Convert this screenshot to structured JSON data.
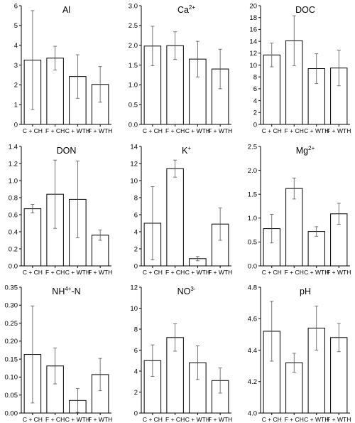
{
  "chart_data": [
    {
      "type": "bar",
      "title": "Al",
      "title_sup": "",
      "title_suffix": "",
      "categories": [
        "C + CH",
        "F + CH",
        "C + WTH",
        "F + WTH"
      ],
      "values": [
        3.25,
        3.35,
        2.42,
        2.02
      ],
      "errors": [
        2.5,
        0.6,
        1.1,
        0.9
      ],
      "ylim": [
        0,
        6
      ],
      "yticks": [
        0,
        1,
        2,
        3,
        4,
        5,
        6
      ],
      "ytick_labels": [
        "0",
        "1",
        "2",
        "3",
        "4",
        "5",
        "6"
      ]
    },
    {
      "type": "bar",
      "title": "Ca",
      "title_sup": "2+",
      "title_suffix": "",
      "categories": [
        "C + CH",
        "F + CH",
        "C + WTH",
        "F + WTH"
      ],
      "values": [
        1.98,
        1.99,
        1.65,
        1.4
      ],
      "errors": [
        0.5,
        0.35,
        0.45,
        0.5
      ],
      "ylim": [
        0,
        3.0
      ],
      "yticks": [
        0,
        0.5,
        1.0,
        1.5,
        2.0,
        2.5,
        3.0
      ],
      "ytick_labels": [
        "0.0",
        "0.5",
        "1.0",
        "1.5",
        "2.0",
        "2.5",
        "3.0"
      ]
    },
    {
      "type": "bar",
      "title": "DOC",
      "title_sup": "",
      "title_suffix": "",
      "categories": [
        "C + CH",
        "F + CH",
        "C + WTH",
        "F + WTH"
      ],
      "values": [
        11.7,
        14.1,
        9.4,
        9.5
      ],
      "errors": [
        2.0,
        4.2,
        2.5,
        3.0
      ],
      "ylim": [
        0,
        20
      ],
      "yticks": [
        0,
        2,
        4,
        6,
        8,
        10,
        12,
        14,
        16,
        18,
        20
      ],
      "ytick_labels": [
        "0",
        "2",
        "4",
        "6",
        "8",
        "10",
        "12",
        "14",
        "16",
        "18",
        "20"
      ]
    },
    {
      "type": "bar",
      "title": "DON",
      "title_sup": "",
      "title_suffix": "",
      "categories": [
        "C + CH",
        "F + CH",
        "C + WTH",
        "F + WTH"
      ],
      "values": [
        0.67,
        0.84,
        0.78,
        0.36
      ],
      "errors": [
        0.05,
        0.4,
        0.45,
        0.06
      ],
      "ylim": [
        0,
        1.4
      ],
      "yticks": [
        0,
        0.2,
        0.4,
        0.6,
        0.8,
        1.0,
        1.2,
        1.4
      ],
      "ytick_labels": [
        "0.0",
        "0.2",
        "0.4",
        "0.6",
        "0.8",
        "1.0",
        "1.2",
        "1.4"
      ]
    },
    {
      "type": "bar",
      "title": "K",
      "title_sup": "+",
      "title_suffix": "",
      "categories": [
        "C + CH",
        "F + CH",
        "C + WTH",
        "F + WTH"
      ],
      "values": [
        5.0,
        11.4,
        0.85,
        4.9
      ],
      "errors": [
        4.3,
        1.0,
        0.25,
        1.9
      ],
      "ylim": [
        0,
        14
      ],
      "yticks": [
        0,
        2,
        4,
        6,
        8,
        10,
        12,
        14
      ],
      "ytick_labels": [
        "0",
        "2",
        "4",
        "6",
        "8",
        "10",
        "12",
        "14"
      ]
    },
    {
      "type": "bar",
      "title": "Mg",
      "title_sup": "2+",
      "title_suffix": "",
      "categories": [
        "C + CH",
        "F + CH",
        "C + WTH",
        "F + WTH"
      ],
      "values": [
        0.78,
        1.62,
        0.72,
        1.09
      ],
      "errors": [
        0.3,
        0.22,
        0.1,
        0.22
      ],
      "ylim": [
        0,
        2.5
      ],
      "yticks": [
        0,
        0.5,
        1.0,
        1.5,
        2.0,
        2.5
      ],
      "ytick_labels": [
        "0.0",
        "0.5",
        "1.0",
        "1.5",
        "2.0",
        "2.5"
      ]
    },
    {
      "type": "bar",
      "title": "NH",
      "title_sup": "4+",
      "title_suffix": "-N",
      "categories": [
        "C + CH",
        "F + CH",
        "C + WTH",
        "F + WTH"
      ],
      "values": [
        0.163,
        0.131,
        0.035,
        0.107
      ],
      "errors": [
        0.135,
        0.05,
        0.033,
        0.045
      ],
      "ylim": [
        0,
        0.35
      ],
      "yticks": [
        0,
        0.05,
        0.1,
        0.15,
        0.2,
        0.25,
        0.3,
        0.35
      ],
      "ytick_labels": [
        "0.00",
        "0.05",
        "0.10",
        "0.15",
        "0.20",
        "0.25",
        "0.30",
        "0.35"
      ]
    },
    {
      "type": "bar",
      "title": "NO",
      "title_sup": "3-",
      "title_suffix": "",
      "categories": [
        "C + CH",
        "F + CH",
        "C + WTH",
        "F + WTH"
      ],
      "values": [
        5.0,
        7.2,
        4.8,
        3.1
      ],
      "errors": [
        1.5,
        1.3,
        1.6,
        1.2
      ],
      "ylim": [
        0,
        12
      ],
      "yticks": [
        0,
        2,
        4,
        6,
        8,
        10,
        12
      ],
      "ytick_labels": [
        "0",
        "2",
        "4",
        "6",
        "8",
        "10",
        "12"
      ]
    },
    {
      "type": "bar",
      "title": "pH",
      "title_sup": "",
      "title_suffix": "",
      "categories": [
        "C + CH",
        "F + CH",
        "C + WTH",
        "F + WTH"
      ],
      "values": [
        4.52,
        4.32,
        4.54,
        4.48
      ],
      "errors": [
        0.19,
        0.06,
        0.14,
        0.09
      ],
      "ylim": [
        4.0,
        4.8
      ],
      "yticks": [
        4.0,
        4.2,
        4.4,
        4.6,
        4.8
      ],
      "ytick_labels": [
        "4.0",
        "4.2",
        "4.4",
        "4.6",
        "4.8"
      ]
    }
  ]
}
